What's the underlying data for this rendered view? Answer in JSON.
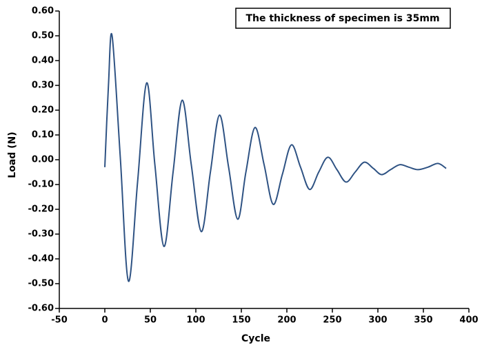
{
  "chart_data": {
    "type": "line",
    "annotation": "The thickness of specimen is 35mm",
    "xlabel": "Cycle",
    "ylabel": "Load (N)",
    "x": [
      0,
      4,
      8,
      17,
      26,
      36,
      46,
      55,
      65,
      75,
      85,
      95,
      106,
      116,
      126,
      136,
      146,
      155,
      165,
      175,
      185,
      195,
      205,
      215,
      225,
      235,
      245,
      255,
      265,
      275,
      285,
      295,
      304,
      314,
      324,
      334,
      344,
      355,
      366,
      375
    ],
    "series": [
      {
        "name": "Load",
        "color": "#2e5283",
        "values": [
          -0.03,
          0.3,
          0.5,
          0.01,
          -0.49,
          -0.09,
          0.31,
          -0.02,
          -0.35,
          -0.05,
          0.24,
          -0.02,
          -0.29,
          -0.05,
          0.18,
          -0.03,
          -0.24,
          -0.05,
          0.13,
          -0.02,
          -0.18,
          -0.06,
          0.06,
          -0.03,
          -0.12,
          -0.05,
          0.01,
          -0.04,
          -0.09,
          -0.05,
          -0.01,
          -0.035,
          -0.06,
          -0.04,
          -0.02,
          -0.03,
          -0.04,
          -0.03,
          -0.015,
          -0.035
        ]
      }
    ],
    "xlim": [
      -50,
      400
    ],
    "xticks": [
      -50,
      0,
      50,
      100,
      150,
      200,
      250,
      300,
      350,
      400
    ],
    "ylim": [
      -0.6,
      0.6
    ],
    "yticks": [
      {
        "value": -0.6,
        "label": "-0.60"
      },
      {
        "value": -0.5,
        "label": "-0.50"
      },
      {
        "value": -0.4,
        "label": "-0.40"
      },
      {
        "value": -0.3,
        "label": "-0.30"
      },
      {
        "value": -0.2,
        "label": "-0.20"
      },
      {
        "value": -0.1,
        "label": "-0.10"
      },
      {
        "value": 0,
        "label": "0.00"
      },
      {
        "value": 0.1,
        "label": "0.10"
      },
      {
        "value": 0.2,
        "label": "0.20"
      },
      {
        "value": 0.3,
        "label": "0.30"
      },
      {
        "value": 0.4,
        "label": "0.40"
      },
      {
        "value": 0.5,
        "label": "0.50"
      },
      {
        "value": 0.6,
        "label": "0.60"
      }
    ],
    "grid": false
  }
}
